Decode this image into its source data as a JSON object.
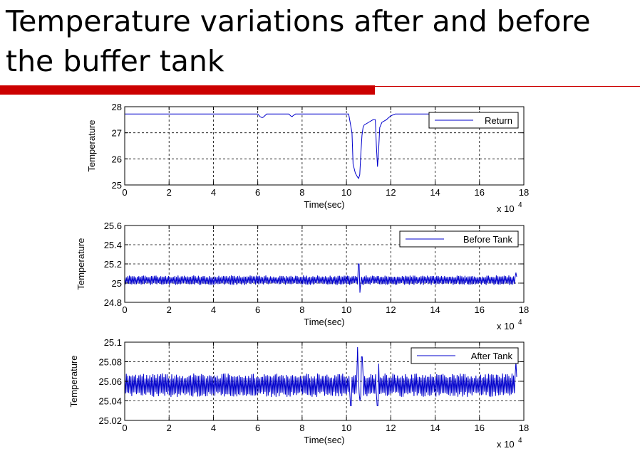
{
  "slide": {
    "title_line1": "Temperature variations after and before",
    "title_line2": "the buffer tank",
    "accent_color": "#cc0000"
  },
  "chart_data": [
    {
      "type": "line",
      "series": [
        {
          "name": "Return",
          "color": "#0000cc",
          "x": [
            0,
            6.0,
            6.1,
            6.2,
            6.25,
            6.35,
            6.4,
            7.4,
            7.5,
            7.55,
            7.6,
            7.7,
            10.1,
            10.25,
            10.3,
            10.4,
            10.5,
            10.55,
            10.6,
            10.65,
            10.7,
            10.75,
            10.8,
            11.0,
            11.2,
            11.3,
            11.35,
            11.4,
            11.45,
            11.5,
            11.55,
            11.6,
            11.8,
            12.0,
            12.2,
            17.7
          ],
          "y": [
            27.72,
            27.72,
            27.62,
            27.58,
            27.6,
            27.68,
            27.72,
            27.72,
            27.64,
            27.62,
            27.66,
            27.72,
            27.72,
            27.0,
            25.8,
            25.45,
            25.3,
            25.25,
            25.4,
            26.2,
            26.9,
            27.2,
            27.3,
            27.4,
            27.5,
            27.5,
            26.5,
            25.7,
            26.3,
            27.2,
            27.3,
            27.4,
            27.5,
            27.65,
            27.72,
            27.72
          ]
        }
      ],
      "x_label": "Time(sec)",
      "y_label": "Temperature",
      "x_ticks": [
        "0",
        "2",
        "4",
        "6",
        "8",
        "10",
        "12",
        "14",
        "16",
        "18"
      ],
      "y_ticks": [
        "25",
        "26",
        "27",
        "28"
      ],
      "x_exponent_label": "x 10",
      "x_exponent_power": "4",
      "xlim": [
        0,
        18
      ],
      "ylim": [
        25,
        28
      ],
      "grid": true,
      "legend_position": "top-right"
    },
    {
      "type": "line",
      "series": [
        {
          "name": "Before Tank",
          "color": "#0000cc",
          "center": 25.03,
          "amplitude": 0.05,
          "x_range": [
            0,
            17.7
          ],
          "spikes": [
            {
              "x": 10.55,
              "y": 25.2
            },
            {
              "x": 10.6,
              "y": 24.9
            },
            {
              "x": 17.65,
              "y": 25.11
            }
          ]
        }
      ],
      "x_label": "Time(sec)",
      "y_label": "Temperature",
      "x_ticks": [
        "0",
        "2",
        "4",
        "6",
        "8",
        "10",
        "12",
        "14",
        "16",
        "18"
      ],
      "y_ticks": [
        "24.8",
        "25",
        "25.2",
        "25.4",
        "25.6"
      ],
      "x_exponent_label": "x 10",
      "x_exponent_power": "4",
      "xlim": [
        0,
        18
      ],
      "ylim": [
        24.8,
        25.6
      ],
      "grid": true,
      "legend_position": "top-right"
    },
    {
      "type": "line",
      "series": [
        {
          "name": "After Tank",
          "color": "#0000cc",
          "center": 25.056,
          "amplitude": 0.012,
          "x_range": [
            0,
            17.7
          ],
          "spikes": [
            {
              "x": 10.2,
              "y": 25.035
            },
            {
              "x": 10.5,
              "y": 25.095
            },
            {
              "x": 10.6,
              "y": 25.04
            },
            {
              "x": 10.7,
              "y": 25.085
            },
            {
              "x": 11.4,
              "y": 25.035
            },
            {
              "x": 11.45,
              "y": 25.078
            },
            {
              "x": 17.65,
              "y": 25.08
            }
          ]
        }
      ],
      "x_label": "Time(sec)",
      "y_label": "Temperature",
      "x_ticks": [
        "0",
        "2",
        "4",
        "6",
        "8",
        "10",
        "12",
        "14",
        "16",
        "18"
      ],
      "y_ticks": [
        "25.02",
        "25.04",
        "25.06",
        "25.08",
        "25.1"
      ],
      "x_exponent_label": "x 10",
      "x_exponent_power": "4",
      "xlim": [
        0,
        18
      ],
      "ylim": [
        25.02,
        25.1
      ],
      "grid": true,
      "legend_position": "top-right"
    }
  ]
}
